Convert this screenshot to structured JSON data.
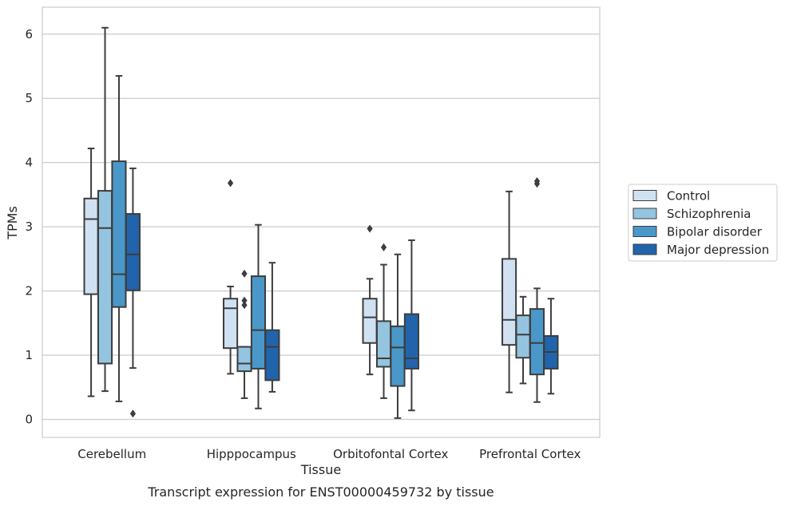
{
  "caption": "Transcript expression for ENST00000459732 by tissue",
  "chart_data": {
    "type": "box",
    "xlabel": "Tissue",
    "ylabel": "TPMs",
    "ylim": [
      -0.28,
      6.42
    ],
    "yticks": [
      0,
      1,
      2,
      3,
      4,
      5,
      6
    ],
    "grid": "horizontal",
    "legend_position": "right",
    "categories": [
      "Cerebellum",
      "Hipppocampus",
      "Orbitofontal Cortex",
      "Prefrontal Cortex"
    ],
    "series": [
      {
        "name": "Control",
        "color": "#d0e1f2",
        "boxes": [
          {
            "whisker_low": 0.36,
            "q1": 1.95,
            "median": 3.12,
            "q3": 3.44,
            "whisker_high": 4.22,
            "outliers": []
          },
          {
            "whisker_low": 0.71,
            "q1": 1.11,
            "median": 1.73,
            "q3": 1.88,
            "whisker_high": 2.07,
            "outliers": [
              3.68
            ]
          },
          {
            "whisker_low": 0.7,
            "q1": 1.19,
            "median": 1.59,
            "q3": 1.88,
            "whisker_high": 2.19,
            "outliers": [
              2.97
            ]
          },
          {
            "whisker_low": 0.42,
            "q1": 1.16,
            "median": 1.55,
            "q3": 2.5,
            "whisker_high": 3.55,
            "outliers": []
          }
        ]
      },
      {
        "name": "Schizophrenia",
        "color": "#94c4df",
        "boxes": [
          {
            "whisker_low": 0.44,
            "q1": 0.87,
            "median": 2.98,
            "q3": 3.56,
            "whisker_high": 6.1,
            "outliers": []
          },
          {
            "whisker_low": 0.33,
            "q1": 0.75,
            "median": 0.87,
            "q3": 1.13,
            "whisker_high": 1.13,
            "outliers": [
              1.78,
              1.85,
              2.27
            ]
          },
          {
            "whisker_low": 0.33,
            "q1": 0.82,
            "median": 0.95,
            "q3": 1.53,
            "whisker_high": 2.41,
            "outliers": [
              2.68
            ]
          },
          {
            "whisker_low": 0.56,
            "q1": 0.96,
            "median": 1.32,
            "q3": 1.62,
            "whisker_high": 1.91,
            "outliers": []
          }
        ]
      },
      {
        "name": "Bipolar disorder",
        "color": "#4a98c9",
        "boxes": [
          {
            "whisker_low": 0.28,
            "q1": 1.75,
            "median": 2.26,
            "q3": 4.02,
            "whisker_high": 5.35,
            "outliers": []
          },
          {
            "whisker_low": 0.17,
            "q1": 0.79,
            "median": 1.39,
            "q3": 2.23,
            "whisker_high": 3.03,
            "outliers": []
          },
          {
            "whisker_low": 0.02,
            "q1": 0.52,
            "median": 1.12,
            "q3": 1.45,
            "whisker_high": 2.57,
            "outliers": []
          },
          {
            "whisker_low": 0.27,
            "q1": 0.7,
            "median": 1.19,
            "q3": 1.72,
            "whisker_high": 2.04,
            "outliers": [
              3.67,
              3.71
            ]
          }
        ]
      },
      {
        "name": "Major depression",
        "color": "#2164ab",
        "boxes": [
          {
            "whisker_low": 0.8,
            "q1": 2.01,
            "median": 2.57,
            "q3": 3.2,
            "whisker_high": 3.91,
            "outliers": [
              0.09
            ]
          },
          {
            "whisker_low": 0.43,
            "q1": 0.61,
            "median": 1.13,
            "q3": 1.39,
            "whisker_high": 2.44,
            "outliers": []
          },
          {
            "whisker_low": 0.14,
            "q1": 0.79,
            "median": 0.95,
            "q3": 1.64,
            "whisker_high": 2.79,
            "outliers": []
          },
          {
            "whisker_low": 0.4,
            "q1": 0.79,
            "median": 1.05,
            "q3": 1.3,
            "whisker_high": 1.88,
            "outliers": []
          }
        ]
      }
    ]
  }
}
